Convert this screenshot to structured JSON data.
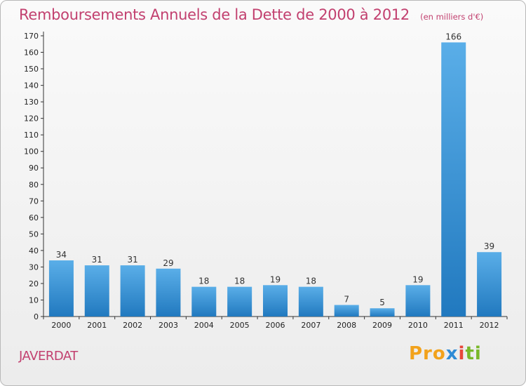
{
  "title": "Remboursements Annuels de la Dette de 2000 à 2012",
  "unit_note": "(en milliers d'€)",
  "commune": "JAVERDAT",
  "logo": {
    "p1": "Pro",
    "p2": "x",
    "p3": "i",
    "p4": "ti",
    "full": "Proxiti"
  },
  "colors": {
    "bar_top": "#5aaee8",
    "bar_bottom": "#2179bf",
    "title": "#c2406f",
    "axis": "#333333"
  },
  "chart_data": {
    "type": "bar",
    "title": "Remboursements Annuels de la Dette de 2000 à 2012",
    "subtitle": "(en milliers d'€)",
    "categories": [
      "2000",
      "2001",
      "2002",
      "2003",
      "2004",
      "2005",
      "2006",
      "2007",
      "2008",
      "2009",
      "2010",
      "2011",
      "2012"
    ],
    "values": [
      34,
      31,
      31,
      29,
      18,
      18,
      19,
      18,
      7,
      5,
      19,
      166,
      39
    ],
    "ylim": [
      0,
      170
    ],
    "yticks": [
      0,
      10,
      20,
      30,
      40,
      50,
      60,
      70,
      80,
      90,
      100,
      110,
      120,
      130,
      140,
      150,
      160,
      170
    ],
    "xlabel": "",
    "ylabel": "",
    "grid": false,
    "data_labels": true
  }
}
